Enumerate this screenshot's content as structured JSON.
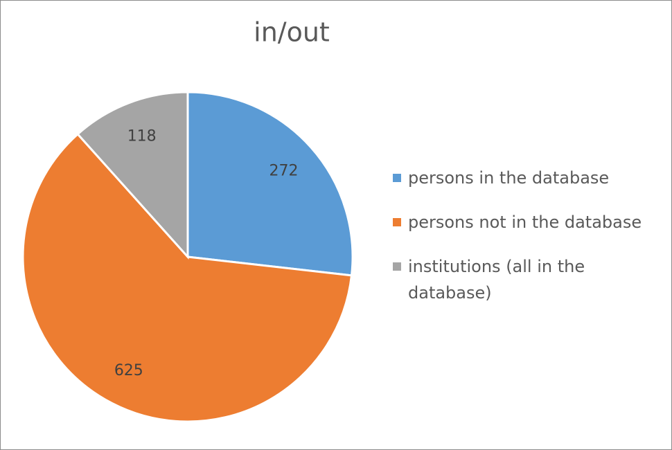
{
  "chart_data": {
    "type": "pie",
    "title": "in/out",
    "categories": [
      "persons in the database",
      "persons not in the database",
      "institutions (all in the database)"
    ],
    "values": [
      272,
      625,
      118
    ],
    "colors": [
      "#5b9bd5",
      "#ed7d31",
      "#a5a5a5"
    ],
    "legend": "right"
  }
}
